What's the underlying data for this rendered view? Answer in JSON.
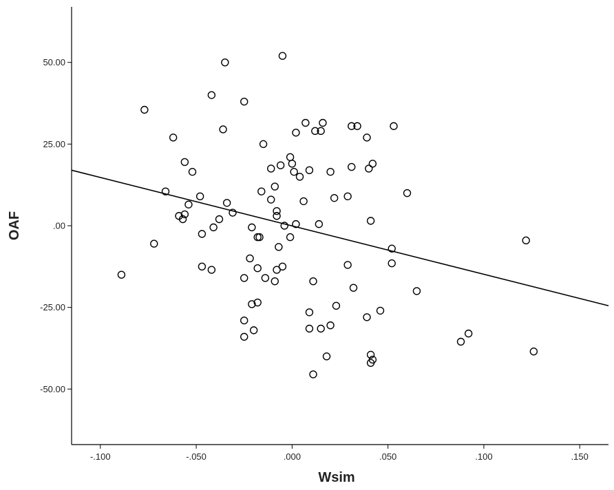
{
  "chart_data": {
    "type": "scatter",
    "xlabel": "Wsim",
    "ylabel": "OAF",
    "xlim": [
      -0.115,
      0.165
    ],
    "ylim": [
      -67,
      67
    ],
    "xticks": [
      -0.1,
      -0.05,
      0.0,
      0.05,
      0.1,
      0.15
    ],
    "xtick_labels": [
      "-.100",
      "-.050",
      ".000",
      ".050",
      ".100",
      ".150"
    ],
    "yticks": [
      50,
      25,
      0,
      -25,
      -50
    ],
    "ytick_labels": [
      "50.00",
      "25.00",
      ".00",
      "-25.00",
      "-50.00"
    ],
    "grid": false,
    "fit_line": {
      "x": [
        -0.115,
        0.165
      ],
      "y": [
        17,
        -24.5
      ]
    },
    "series": [
      {
        "points": [
          [
            -0.089,
            -15
          ],
          [
            -0.077,
            35.5
          ],
          [
            -0.072,
            -5.5
          ],
          [
            -0.066,
            10.5
          ],
          [
            -0.062,
            27
          ],
          [
            -0.059,
            3
          ],
          [
            -0.057,
            2
          ],
          [
            -0.056,
            3.5
          ],
          [
            -0.056,
            19.5
          ],
          [
            -0.054,
            6.5
          ],
          [
            -0.052,
            16.5
          ],
          [
            -0.048,
            9
          ],
          [
            -0.047,
            -2.5
          ],
          [
            -0.047,
            -12.5
          ],
          [
            -0.042,
            40
          ],
          [
            -0.042,
            -13.5
          ],
          [
            -0.041,
            -0.5
          ],
          [
            -0.038,
            2
          ],
          [
            -0.036,
            29.5
          ],
          [
            -0.035,
            50
          ],
          [
            -0.034,
            7
          ],
          [
            -0.031,
            4
          ],
          [
            -0.025,
            38
          ],
          [
            -0.025,
            -16
          ],
          [
            -0.025,
            -29
          ],
          [
            -0.025,
            -34
          ],
          [
            -0.022,
            -10
          ],
          [
            -0.021,
            -0.5
          ],
          [
            -0.021,
            -24
          ],
          [
            -0.02,
            -32
          ],
          [
            -0.018,
            -23.5
          ],
          [
            -0.018,
            -3.5
          ],
          [
            -0.018,
            -13
          ],
          [
            -0.017,
            -3.5
          ],
          [
            -0.016,
            10.5
          ],
          [
            -0.015,
            25
          ],
          [
            -0.014,
            -16
          ],
          [
            -0.011,
            8
          ],
          [
            -0.011,
            17.5
          ],
          [
            -0.009,
            12
          ],
          [
            -0.009,
            -17
          ],
          [
            -0.008,
            4.5
          ],
          [
            -0.008,
            3
          ],
          [
            -0.008,
            -13.5
          ],
          [
            -0.007,
            -6.5
          ],
          [
            -0.006,
            18.5
          ],
          [
            -0.005,
            -12.5
          ],
          [
            -0.004,
            0
          ],
          [
            -0.005,
            52
          ],
          [
            -0.001,
            -3.5
          ],
          [
            -0.001,
            21
          ],
          [
            0.0,
            19
          ],
          [
            0.001,
            16.5
          ],
          [
            0.002,
            0.5
          ],
          [
            0.002,
            28.5
          ],
          [
            0.004,
            15
          ],
          [
            0.006,
            7.5
          ],
          [
            0.007,
            31.5
          ],
          [
            0.009,
            17
          ],
          [
            0.009,
            -26.5
          ],
          [
            0.009,
            -31.5
          ],
          [
            0.011,
            -17
          ],
          [
            0.011,
            -45.5
          ],
          [
            0.012,
            29
          ],
          [
            0.014,
            0.5
          ],
          [
            0.015,
            29
          ],
          [
            0.015,
            -31.5
          ],
          [
            0.016,
            31.5
          ],
          [
            0.018,
            -40
          ],
          [
            0.02,
            16.5
          ],
          [
            0.02,
            -30.5
          ],
          [
            0.022,
            8.5
          ],
          [
            0.023,
            -24.5
          ],
          [
            0.029,
            9
          ],
          [
            0.029,
            -12
          ],
          [
            0.031,
            18
          ],
          [
            0.031,
            30.5
          ],
          [
            0.032,
            -19
          ],
          [
            0.034,
            30.5
          ],
          [
            0.039,
            27
          ],
          [
            0.039,
            -28
          ],
          [
            0.04,
            17.5
          ],
          [
            0.041,
            1.5
          ],
          [
            0.041,
            -39.5
          ],
          [
            0.041,
            -42
          ],
          [
            0.042,
            19
          ],
          [
            0.042,
            -41
          ],
          [
            0.046,
            -26
          ],
          [
            0.052,
            -7
          ],
          [
            0.052,
            -11.5
          ],
          [
            0.053,
            30.5
          ],
          [
            0.06,
            10
          ],
          [
            0.065,
            -20
          ],
          [
            0.088,
            -35.5
          ],
          [
            0.092,
            -33
          ],
          [
            0.122,
            -4.5
          ],
          [
            0.126,
            -38.5
          ]
        ]
      }
    ]
  }
}
